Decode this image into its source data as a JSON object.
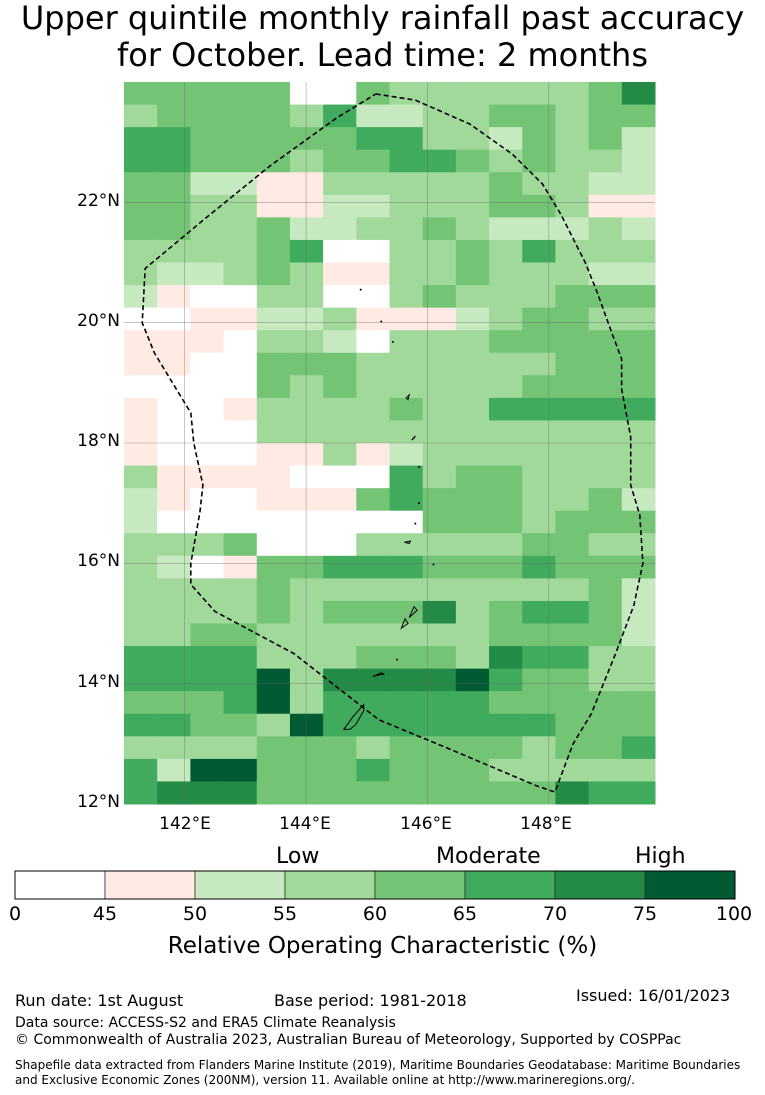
{
  "title": {
    "line1": "Upper quintile monthly rainfall past accuracy",
    "line2": "for October. Lead time: 2 months"
  },
  "map": {
    "lon_range": [
      141.0,
      149.75
    ],
    "lat_range": [
      12.0,
      24.0
    ],
    "cell_degrees": [
      0.8333,
      0.5556
    ],
    "lat_ticks": [
      "22°N",
      "20°N",
      "18°N",
      "16°N",
      "14°N",
      "12°N"
    ],
    "lon_ticks": [
      "142°E",
      "144°E",
      "146°E",
      "148°E"
    ],
    "grid_rows_north_to_south": [
      "4444400433333346",
      "3444435223344344",
      "5544444553324342",
      "5544434455434332",
      "4422113333343322",
      "4433112233344311",
      "4433422334322232",
      "3333450033435333",
      "3223431133433322",
      "2100330034333444",
      "0011223111234433",
      "1110332033344444",
      "1100444333333444",
      "0000434333334444",
      "1001333343355555",
      "1000333333333333",
      "1000113123333333",
      "3111100053443333",
      "2100111454443342",
      "2000000004443444",
      "3334000333334433",
      "3201445554445444",
      "3333433333333342",
      "3333434446345542",
      "3344333333344442",
      "5555333444365533",
      "5555736666754433",
      "4445735555544444",
      "5544375555555444",
      "3333444344443445",
      "5277444544433333",
      "5666444444444655"
    ],
    "color_scale": [
      "#ffffff",
      "#ffeae4",
      "#c7e9c0",
      "#a1d99b",
      "#74c476",
      "#41ab5d",
      "#238b45",
      "#005a32"
    ],
    "boundary_path": [
      [
        145.15,
        23.8
      ],
      [
        145.8,
        23.7
      ],
      [
        146.7,
        23.3
      ],
      [
        147.4,
        22.8
      ],
      [
        147.9,
        22.3
      ],
      [
        148.2,
        21.8
      ],
      [
        148.6,
        21.0
      ],
      [
        148.8,
        20.5
      ],
      [
        149.05,
        19.8
      ],
      [
        149.2,
        19.4
      ],
      [
        149.2,
        18.9
      ],
      [
        149.35,
        18.1
      ],
      [
        149.35,
        17.3
      ],
      [
        149.5,
        16.8
      ],
      [
        149.55,
        16.0
      ],
      [
        149.4,
        15.3
      ],
      [
        149.1,
        14.5
      ],
      [
        148.7,
        13.5
      ],
      [
        148.4,
        13.0
      ],
      [
        148.1,
        12.2
      ],
      [
        147.8,
        12.3
      ],
      [
        146.4,
        12.9
      ],
      [
        145.2,
        13.4
      ],
      [
        143.8,
        14.5
      ],
      [
        142.5,
        15.2
      ],
      [
        142.1,
        15.65
      ],
      [
        142.1,
        16.0
      ],
      [
        142.25,
        16.85
      ],
      [
        142.3,
        17.3
      ],
      [
        142.15,
        18.0
      ],
      [
        142.1,
        18.5
      ],
      [
        141.8,
        19.0
      ],
      [
        141.5,
        19.5
      ],
      [
        141.3,
        20.0
      ],
      [
        141.35,
        20.9
      ],
      [
        142.3,
        21.7
      ],
      [
        143.4,
        22.6
      ],
      [
        144.5,
        23.4
      ],
      [
        145.15,
        23.8
      ]
    ],
    "islands": [
      {
        "name": "Guam",
        "path": [
          [
            144.62,
            13.24
          ],
          [
            144.78,
            13.46
          ],
          [
            144.95,
            13.65
          ],
          [
            144.95,
            13.55
          ],
          [
            144.82,
            13.32
          ],
          [
            144.72,
            13.24
          ],
          [
            144.62,
            13.24
          ]
        ]
      },
      {
        "name": "Rota",
        "path": [
          [
            145.1,
            14.12
          ],
          [
            145.28,
            14.16
          ],
          [
            145.24,
            14.18
          ],
          [
            145.1,
            14.12
          ]
        ]
      },
      {
        "name": "Tinian",
        "path": [
          [
            145.57,
            14.92
          ],
          [
            145.63,
            15.08
          ],
          [
            145.68,
            15.0
          ],
          [
            145.57,
            14.92
          ]
        ]
      },
      {
        "name": "Saipan",
        "path": [
          [
            145.7,
            15.1
          ],
          [
            145.78,
            15.28
          ],
          [
            145.83,
            15.22
          ],
          [
            145.7,
            15.1
          ]
        ]
      },
      {
        "name": "Anatahan",
        "path": [
          [
            145.62,
            16.35
          ],
          [
            145.72,
            16.37
          ],
          [
            145.7,
            16.33
          ],
          [
            145.62,
            16.35
          ]
        ]
      },
      {
        "name": "Pagan",
        "path": [
          [
            145.74,
            18.05
          ],
          [
            145.8,
            18.12
          ],
          [
            145.78,
            18.08
          ],
          [
            145.74,
            18.05
          ]
        ]
      },
      {
        "name": "Agrihan",
        "path": [
          [
            145.65,
            18.75
          ],
          [
            145.7,
            18.8
          ],
          [
            145.68,
            18.72
          ],
          [
            145.65,
            18.75
          ]
        ]
      }
    ],
    "island_dots": [
      [
        144.9,
        20.55
      ],
      [
        145.24,
        20.02
      ],
      [
        145.43,
        19.68
      ],
      [
        145.86,
        17.6
      ],
      [
        145.86,
        17.0
      ],
      [
        145.8,
        16.66
      ],
      [
        146.1,
        15.98
      ],
      [
        145.5,
        14.4
      ]
    ]
  },
  "colorbar": {
    "categories": {
      "low": "Low",
      "moderate": "Moderate",
      "high": "High"
    },
    "ticks": [
      "0",
      "45",
      "50",
      "55",
      "60",
      "65",
      "70",
      "75",
      "100"
    ],
    "label": "Relative Operating Characteristic (%)"
  },
  "footer": {
    "run_date": "Run date: 1st August",
    "base_period": "Base period: 1981-2018",
    "issued": "Issued: 16/01/2023",
    "data_source": "Data source: ACCESS-S2 and ERA5 Climate Reanalysis",
    "copyright": "© Commonwealth of Australia 2023, Australian Bureau of Meteorology, Supported by COSPPac",
    "shapefile_line1": "Shapefile data extracted from Flanders Marine Institute (2019), Maritime Boundaries Geodatabase: Maritime Boundaries",
    "shapefile_line2": "and Exclusive Economic Zones (200NM), version 11. Available online at http://www.marineregions.org/."
  }
}
